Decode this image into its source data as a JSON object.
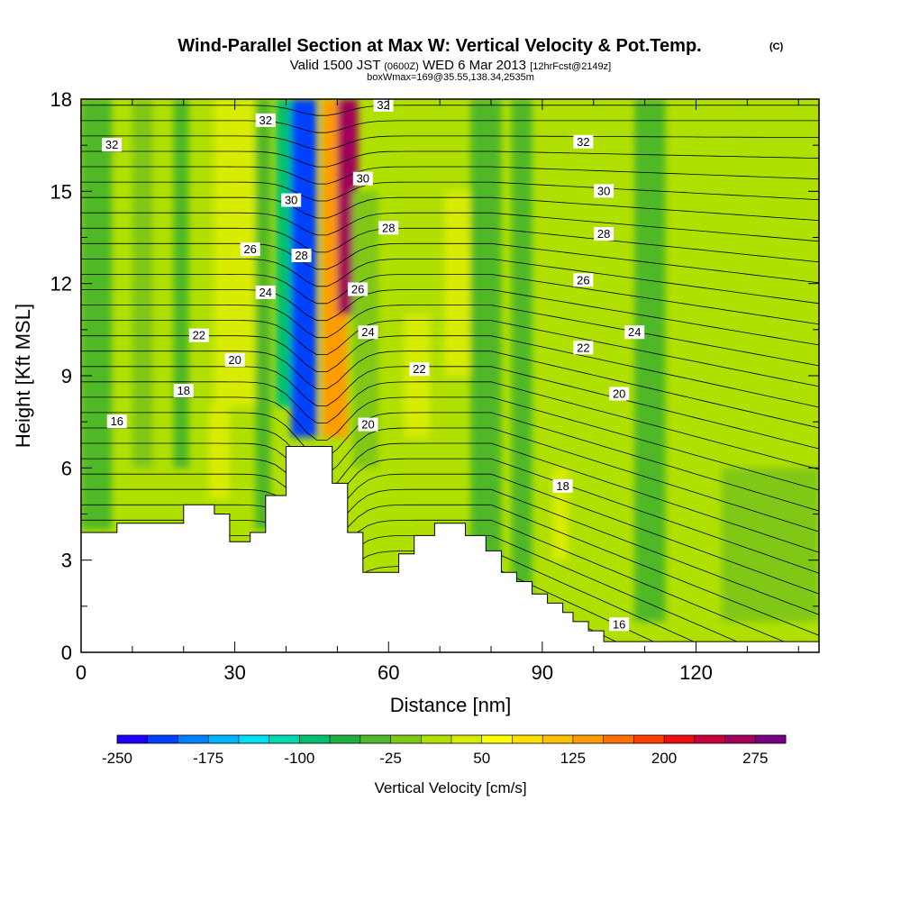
{
  "chart_data": {
    "type": "heatmap",
    "title": "Wind-Parallel Section at Max W: Vertical Velocity & Pot.Temp.",
    "title_mark": "(C)",
    "subtitle_parts": [
      "Valid 1500 JST",
      "(0600Z)",
      "WED 6 Mar 2013",
      "[12hrFcst@2149z]"
    ],
    "subtitle2": "boxWmax=169@35.55,138.34,2535m",
    "xlabel": "Distance [nm]",
    "ylabel": "Height [Kft MSL]",
    "xlim": [
      0,
      144
    ],
    "ylim": [
      0,
      18
    ],
    "x_ticks": [
      0,
      30,
      60,
      90,
      120
    ],
    "y_ticks": [
      0,
      3,
      6,
      9,
      12,
      15,
      18
    ],
    "colorbar": {
      "label": "Vertical Velocity [cm/s]",
      "tick_labels": [
        "-250",
        "-175",
        "-100",
        "-25",
        "50",
        "125",
        "200",
        "275"
      ],
      "range": [
        -250,
        325
      ],
      "colors": [
        "#1e00ff",
        "#0040ff",
        "#0080ff",
        "#00b4ff",
        "#00e0f0",
        "#00d8b0",
        "#00c070",
        "#20b040",
        "#50b828",
        "#80c818",
        "#b0e000",
        "#d8ec00",
        "#ffff00",
        "#ffe000",
        "#ffc000",
        "#ff9c00",
        "#ff7000",
        "#ff4000",
        "#e81010",
        "#c8003c",
        "#a0005a",
        "#780080"
      ]
    },
    "theta_contours": {
      "units": "K",
      "labels": [
        {
          "text": "32",
          "x": 6,
          "y": 16.5
        },
        {
          "text": "32",
          "x": 36,
          "y": 17.3
        },
        {
          "text": "32",
          "x": 59,
          "y": 17.8
        },
        {
          "text": "32",
          "x": 98,
          "y": 16.6
        },
        {
          "text": "30",
          "x": 41,
          "y": 14.7
        },
        {
          "text": "30",
          "x": 55,
          "y": 15.4
        },
        {
          "text": "30",
          "x": 102,
          "y": 15.0
        },
        {
          "text": "28",
          "x": 43,
          "y": 12.9
        },
        {
          "text": "28",
          "x": 60,
          "y": 13.8
        },
        {
          "text": "28",
          "x": 102,
          "y": 13.6
        },
        {
          "text": "26",
          "x": 33,
          "y": 13.1
        },
        {
          "text": "26",
          "x": 54,
          "y": 11.8
        },
        {
          "text": "26",
          "x": 98,
          "y": 12.1
        },
        {
          "text": "24",
          "x": 36,
          "y": 11.7
        },
        {
          "text": "24",
          "x": 56,
          "y": 10.4
        },
        {
          "text": "24",
          "x": 108,
          "y": 10.4
        },
        {
          "text": "22",
          "x": 23,
          "y": 10.3
        },
        {
          "text": "22",
          "x": 66,
          "y": 9.2
        },
        {
          "text": "22",
          "x": 98,
          "y": 9.9
        },
        {
          "text": "20",
          "x": 30,
          "y": 9.5
        },
        {
          "text": "20",
          "x": 56,
          "y": 7.4
        },
        {
          "text": "20",
          "x": 105,
          "y": 8.4
        },
        {
          "text": "18",
          "x": 20,
          "y": 8.5
        },
        {
          "text": "18",
          "x": 94,
          "y": 5.4
        },
        {
          "text": "16",
          "x": 7,
          "y": 7.5
        },
        {
          "text": "16",
          "x": 105,
          "y": 0.9
        }
      ]
    },
    "terrain_kft": [
      [
        0,
        3.9
      ],
      [
        7,
        3.9
      ],
      [
        7,
        4.2
      ],
      [
        20,
        4.2
      ],
      [
        20,
        4.8
      ],
      [
        26,
        4.8
      ],
      [
        26,
        4.5
      ],
      [
        29,
        4.5
      ],
      [
        29,
        3.6
      ],
      [
        33,
        3.6
      ],
      [
        33,
        3.9
      ],
      [
        36,
        3.9
      ],
      [
        36,
        5.1
      ],
      [
        40,
        5.1
      ],
      [
        40,
        6.7
      ],
      [
        49,
        6.7
      ],
      [
        49,
        5.5
      ],
      [
        52,
        5.5
      ],
      [
        52,
        3.9
      ],
      [
        55,
        3.9
      ],
      [
        55,
        2.6
      ],
      [
        62,
        2.6
      ],
      [
        62,
        3.2
      ],
      [
        65,
        3.2
      ],
      [
        65,
        3.8
      ],
      [
        69,
        3.8
      ],
      [
        69,
        4.2
      ],
      [
        75,
        4.2
      ],
      [
        75,
        3.8
      ],
      [
        79,
        3.8
      ],
      [
        79,
        3.3
      ],
      [
        82,
        3.3
      ],
      [
        82,
        2.6
      ],
      [
        85,
        2.6
      ],
      [
        85,
        2.3
      ],
      [
        88,
        2.3
      ],
      [
        88,
        1.9
      ],
      [
        91,
        1.9
      ],
      [
        91,
        1.6
      ],
      [
        94,
        1.6
      ],
      [
        94,
        1.3
      ],
      [
        96,
        1.3
      ],
      [
        96,
        1.0
      ],
      [
        99,
        1.0
      ],
      [
        99,
        0.7
      ],
      [
        102,
        0.7
      ],
      [
        102,
        0.35
      ],
      [
        144,
        0.35
      ]
    ],
    "w_field": {
      "background_cm_s": 15,
      "zones": [
        {
          "x": [
            0,
            6
          ],
          "y": [
            4,
            18
          ],
          "w": -15
        },
        {
          "x": [
            10,
            14
          ],
          "y": [
            6,
            18
          ],
          "w": -10
        },
        {
          "x": [
            18,
            21
          ],
          "y": [
            6,
            18
          ],
          "w": -15
        },
        {
          "x": [
            26,
            34
          ],
          "y": [
            8,
            18
          ],
          "w": 60
        },
        {
          "x": [
            25,
            29
          ],
          "y": [
            5,
            8
          ],
          "w": 45
        },
        {
          "x": [
            34,
            37
          ],
          "y": [
            4,
            18
          ],
          "w": -25
        },
        {
          "x": [
            38,
            41
          ],
          "y": [
            8,
            18
          ],
          "w": -90
        },
        {
          "x": [
            41,
            46
          ],
          "y": [
            7,
            18
          ],
          "w": -200
        },
        {
          "x": [
            47,
            52
          ],
          "y": [
            7,
            18
          ],
          "w": 160
        },
        {
          "x": [
            50,
            54
          ],
          "y": [
            11,
            18
          ],
          "w": 290
        },
        {
          "x": [
            53,
            58
          ],
          "y": [
            6,
            15
          ],
          "w": -10
        },
        {
          "x": [
            63,
            68
          ],
          "y": [
            7,
            11
          ],
          "w": 50
        },
        {
          "x": [
            71,
            76
          ],
          "y": [
            9,
            15
          ],
          "w": 45
        },
        {
          "x": [
            76,
            82
          ],
          "y": [
            3,
            18
          ],
          "w": -15
        },
        {
          "x": [
            84,
            88
          ],
          "y": [
            1,
            18
          ],
          "w": -20
        },
        {
          "x": [
            92,
            95
          ],
          "y": [
            3,
            6
          ],
          "w": 55
        },
        {
          "x": [
            108,
            114
          ],
          "y": [
            1,
            18
          ],
          "w": -15
        },
        {
          "x": [
            125,
            144
          ],
          "y": [
            1,
            6
          ],
          "w": -10
        }
      ]
    }
  }
}
